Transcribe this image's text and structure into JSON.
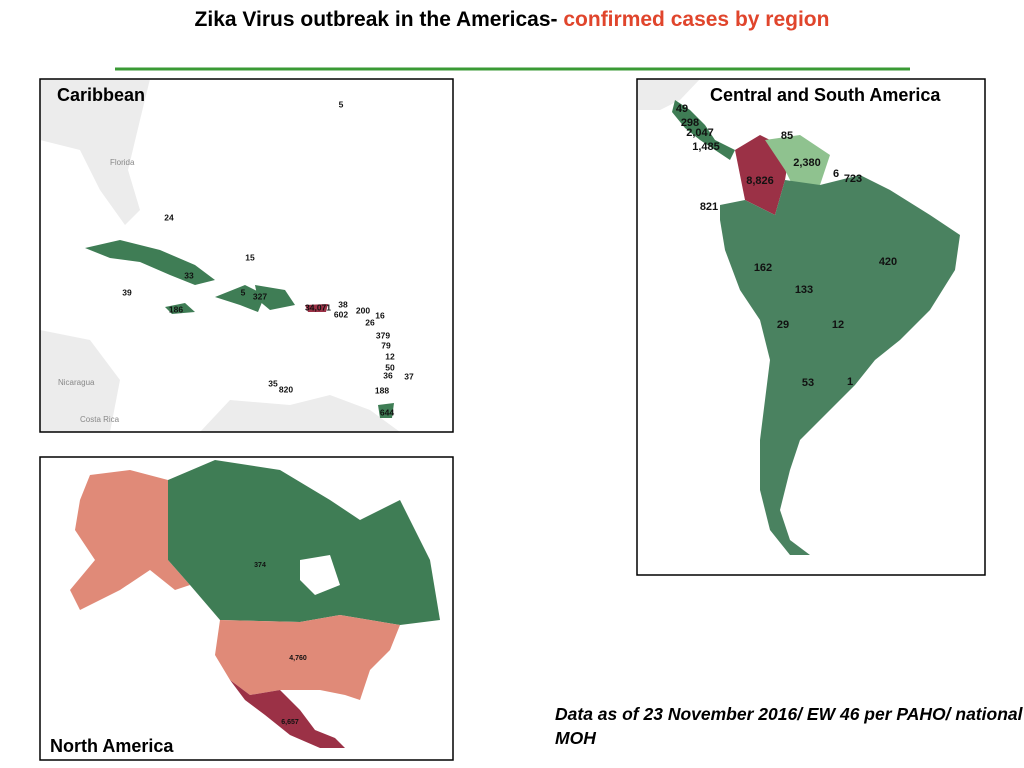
{
  "title": {
    "main": "Zika Virus outbreak in the Americas-",
    "highlight": "confirmed cases by region"
  },
  "maps": [
    {
      "title": "Caribbean",
      "base_labels": [
        "Florida",
        "Nicaragua",
        "Costa Rica"
      ],
      "labels": [
        "5",
        "24",
        "15",
        "33",
        "39",
        "5",
        "327",
        "186",
        "34,071",
        "38",
        "602",
        "200",
        "16",
        "26",
        "379",
        "79",
        "12",
        "50",
        "36",
        "37",
        "35",
        "820",
        "188",
        "644"
      ]
    },
    {
      "title": "Central and South America",
      "labels": [
        "49",
        "298",
        "2,047",
        "1,485",
        "85",
        "2,380",
        "6",
        "723",
        "8,826",
        "821",
        "420",
        "162",
        "133",
        "29",
        "12",
        "53",
        "1"
      ]
    },
    {
      "title": "North America",
      "labels": [
        "374",
        "4,760",
        "6,657"
      ]
    }
  ],
  "footnote": "Data as of 23 November 2016/ EW 46 per PAHO/ national MOH"
}
